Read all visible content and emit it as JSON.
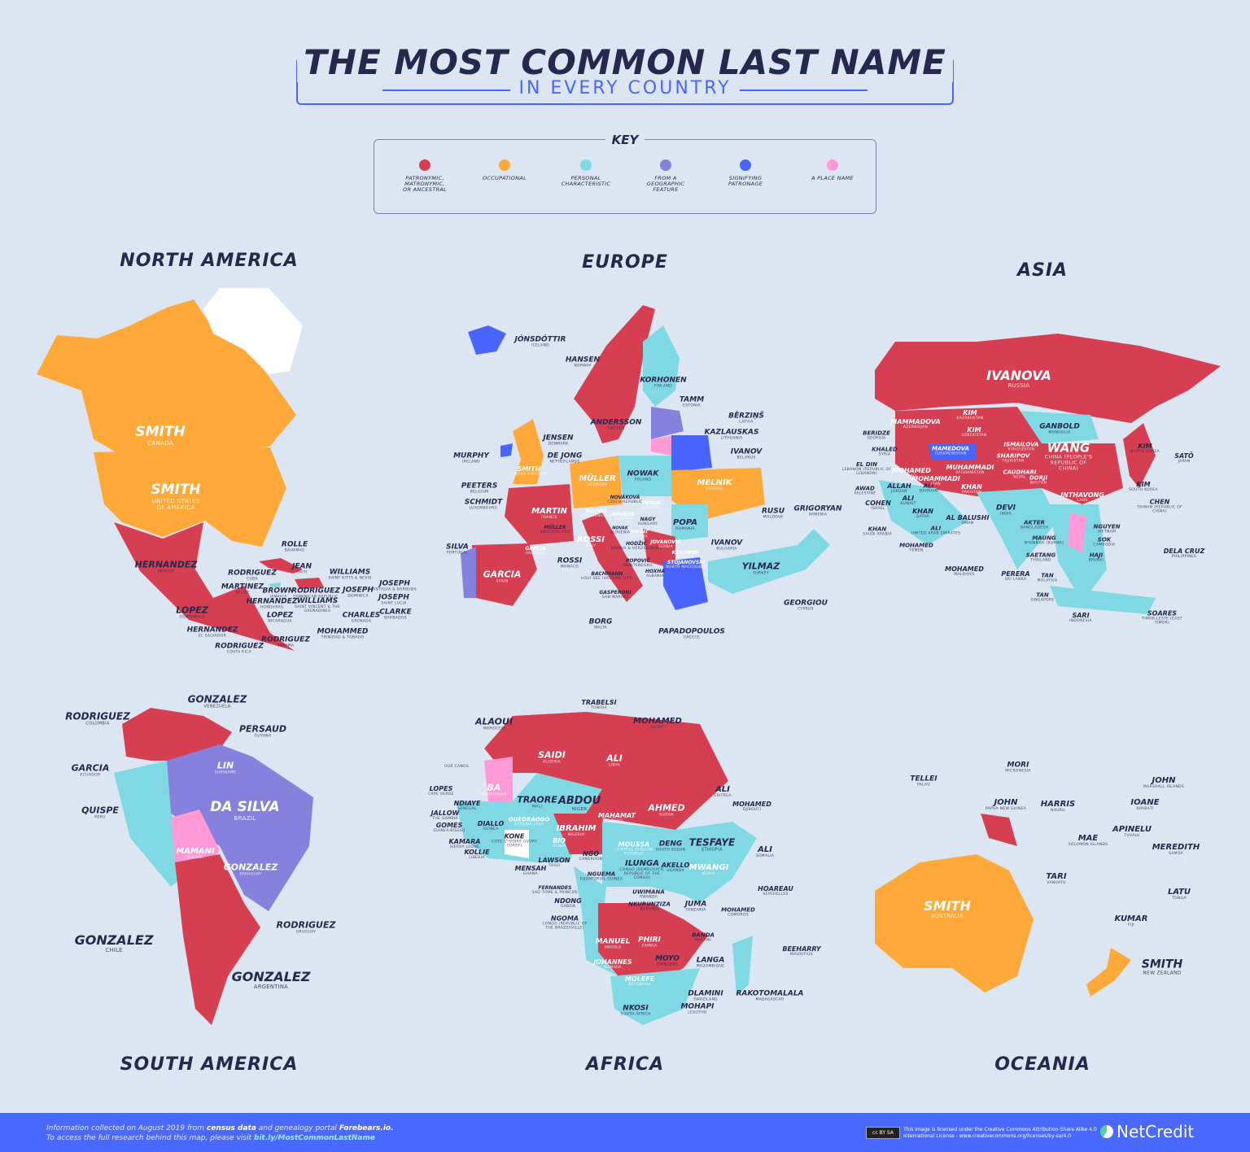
{
  "header": {
    "title": "THE MOST COMMON LAST NAME",
    "subtitle": "IN EVERY COUNTRY"
  },
  "key": {
    "title": "KEY",
    "items": [
      {
        "label": "PATRONYMIC,\nMATRONYMIC,\nOR ANCESTRAL",
        "color": "#d63f52"
      },
      {
        "label": "OCCUPATIONAL",
        "color": "#ffa93a"
      },
      {
        "label": "PERSONAL\nCHARACTERISTIC",
        "color": "#80d8e2"
      },
      {
        "label": "FROM A\nGEOGRAPHIC\nFEATURE",
        "color": "#8581dc"
      },
      {
        "label": "SIGNIFYING\nPATRONAGE",
        "color": "#4a64ff"
      },
      {
        "label": "A PLACE NAME",
        "color": "#ff9ad6"
      }
    ]
  },
  "continents": [
    "NORTH AMERICA",
    "EUROPE",
    "ASIA",
    "SOUTH AMERICA",
    "AFRICA",
    "OCEANIA"
  ],
  "labels": {
    "north_america": [
      [
        "SMITH",
        "CANADA"
      ],
      [
        "SMITH",
        "UNITED STATES OF AMERICA"
      ],
      [
        "HERNANDEZ",
        "MEXICO"
      ],
      [
        "ROLLE",
        "BAHAMAS"
      ],
      [
        "JEAN",
        "HAITI"
      ],
      [
        "RODRIGUEZ",
        "CUBA"
      ],
      [
        "WILLIAMS",
        "SAINT KITTS & NEVIS"
      ],
      [
        "JOSEPH",
        "ANTIGUA & BARBUDA"
      ],
      [
        "MARTINEZ",
        "BELIZE"
      ],
      [
        "BROWN",
        "JAMAICA"
      ],
      [
        "RODRIGUEZ",
        "DOMINICAN REPUBLIC"
      ],
      [
        "JOSEPH",
        "DOMINICA"
      ],
      [
        "HERNANDEZ",
        "HONDURAS"
      ],
      [
        "JOSEPH",
        "SAINT LUCIA"
      ],
      [
        "WILLIAMS",
        "SAINT VINCENT & THE GRENADINES"
      ],
      [
        "CLARKE",
        "BARBADOS"
      ],
      [
        "LOPEZ",
        "GUATEMALA"
      ],
      [
        "LOPEZ",
        "NICARAGUA"
      ],
      [
        "CHARLES",
        "GRENADA"
      ],
      [
        "HERNANDEZ",
        "EL SALVADOR"
      ],
      [
        "MOHAMMED",
        "TRINIDAD & TOBAGO"
      ],
      [
        "RODRIGUEZ",
        "PANAMA"
      ],
      [
        "RODRIGUEZ",
        "COSTA RICA"
      ]
    ],
    "europe": [
      [
        "JÓNSDÓTTIR",
        "ICELAND"
      ],
      [
        "HANSEN",
        "NORWAY"
      ],
      [
        "KORHONEN",
        "FINLAND"
      ],
      [
        "TAMM",
        "ESTONIA"
      ],
      [
        "ANDERSSON",
        "SWEDEN"
      ],
      [
        "BĒRZIŅŠ",
        "LATVIA"
      ],
      [
        "KAZLAUSKAS",
        "LITHUANIA"
      ],
      [
        "JENSEN",
        "DENMARK"
      ],
      [
        "MURPHY",
        "IRELAND"
      ],
      [
        "DE JONG",
        "NETHERLANDS"
      ],
      [
        "IVANOV",
        "BELARUS"
      ],
      [
        "SMITH",
        "UNITED KINGDOM"
      ],
      [
        "NOWAK",
        "POLAND"
      ],
      [
        "MÜLLER",
        "GERMANY"
      ],
      [
        "MELNIK",
        "UKRAINE"
      ],
      [
        "PEETERS",
        "BELGIUM"
      ],
      [
        "NOVÁKOVÁ",
        "CZECH REPUBLIC"
      ],
      [
        "VARGA",
        "SLOVAKIA"
      ],
      [
        "SCHMIDT",
        "LUXEMBOURG"
      ],
      [
        "BÜCHEL",
        "LIECHTENSTEIN"
      ],
      [
        "MARTIN",
        "FRANCE"
      ],
      [
        "GRUBER",
        "AUSTRIA"
      ],
      [
        "RUSU",
        "MOLDOVA"
      ],
      [
        "GRIGORYAN",
        "ARMENIA"
      ],
      [
        "NAGY",
        "HUNGARY"
      ],
      [
        "POPA",
        "ROMANIA"
      ],
      [
        "MÜLLER",
        "SWITZERLAND"
      ],
      [
        "NOVAK",
        "SLOVENIA"
      ],
      [
        "HORVAT",
        "CROATIA"
      ],
      [
        "ROSSI",
        "ITALY"
      ],
      [
        "HODŽIĆ",
        "BOSNIA & HERZEGOVINA"
      ],
      [
        "JOVANOVIĆ",
        "SERBIA"
      ],
      [
        "IVANOV",
        "BULGARIA"
      ],
      [
        "GARCIA",
        "ANDORRA"
      ],
      [
        "SILVA",
        "PORTUGAL"
      ],
      [
        "KRASNIQI",
        "KOSOVO"
      ],
      [
        "POPOVIĆ",
        "MONTENEGRO"
      ],
      [
        "STOJANOVSKI",
        "NORTH MACEDONIA"
      ],
      [
        "ROSSI",
        "MONACO"
      ],
      [
        "YILMAZ",
        "TURKEY"
      ],
      [
        "GARCIA",
        "SPAIN"
      ],
      [
        "HOXHA",
        "ALBANIA"
      ],
      [
        "BACHMANN",
        "HOLY SEE (VATICAN CITY)"
      ],
      [
        "GASPERONI",
        "SAN MARINO"
      ],
      [
        "GEORGIOU",
        "CYPRUS"
      ],
      [
        "BORG",
        "MALTA"
      ],
      [
        "PAPADOPOULOS",
        "GREECE"
      ]
    ],
    "asia": [
      [
        "IVANOVA",
        "RUSSIA"
      ],
      [
        "MAMMADOVA",
        "AZERBAIJAN"
      ],
      [
        "KIM",
        "KAZAKHSTAN"
      ],
      [
        "GANBOLD",
        "MONGOLIA"
      ],
      [
        "BERIDZE",
        "GEORGIA"
      ],
      [
        "KIM",
        "UZBEKISTAN"
      ],
      [
        "KHALED",
        "SYRIA"
      ],
      [
        "MAMEDOVA",
        "TURKMENISTAN"
      ],
      [
        "ISMAILOVA",
        "KYRGYZSTAN"
      ],
      [
        "WANG",
        "CHINA (PEOPLE'S REPUBLIC OF CHINA)"
      ],
      [
        "KIM",
        "NORTH KOREA"
      ],
      [
        "SATŌ",
        "JAPAN"
      ],
      [
        "SHARIPOV",
        "TAJIKISTAN"
      ],
      [
        "EL DIN",
        "LEBANON (REPUBLIC OF LEBANON)"
      ],
      [
        "MOHAMED",
        "IRAQ"
      ],
      [
        "MUHAMMADI",
        "AFGHANISTAN"
      ],
      [
        "MOHAMMADI",
        "IRAN"
      ],
      [
        "CAUDHARI",
        "NEPAL"
      ],
      [
        "DORJI",
        "BHUTAN"
      ],
      [
        "KHAN",
        "PAKISTAN"
      ],
      [
        "KIM",
        "SOUTH KOREA"
      ],
      [
        "ALLAH",
        "JORDAN"
      ],
      [
        "AWAD",
        "PALESTINE"
      ],
      [
        "ALI",
        "BAHRAIN"
      ],
      [
        "ALI",
        "KUWAIT"
      ],
      [
        "INTHAVONG",
        "LAOS"
      ],
      [
        "COHEN",
        "ISRAEL"
      ],
      [
        "CHEN",
        "TAIWAN (REPUBLIC OF CHINA)"
      ],
      [
        "KHAN",
        "QATAR"
      ],
      [
        "AL BALUSHI",
        "OMAN"
      ],
      [
        "DEVI",
        "INDIA"
      ],
      [
        "AKTER",
        "BANGLADESH"
      ],
      [
        "KHAN",
        "SAUDI ARABIA"
      ],
      [
        "ALI",
        "UNITED ARAB EMIRATES"
      ],
      [
        "NGUYEN",
        "VIETNAM"
      ],
      [
        "SOK",
        "CAMBODIA"
      ],
      [
        "MAUNG",
        "MYANMAR (BURMA)"
      ],
      [
        "MOHAMED",
        "YEMEN"
      ],
      [
        "SAETANG",
        "THAILAND"
      ],
      [
        "HAJI",
        "BRUNEI"
      ],
      [
        "DELA CRUZ",
        "PHILIPPINES"
      ],
      [
        "MOHAMED",
        "MALDIVES"
      ],
      [
        "PERERA",
        "SRI LANKA"
      ],
      [
        "TAN",
        "MALAYSIA"
      ],
      [
        "TAN",
        "SINGAPORE"
      ],
      [
        "SARI",
        "INDONESIA"
      ],
      [
        "SOARES",
        "TIMOR-LESTE (EAST TIMOR)"
      ]
    ],
    "south_america": [
      [
        "RODRIGUEZ",
        "COLOMBIA"
      ],
      [
        "GONZALEZ",
        "VENEZUELA"
      ],
      [
        "PERSAUD",
        "GUYANA"
      ],
      [
        "GARCIA",
        "ECUADOR"
      ],
      [
        "LIN",
        "SURINAME"
      ],
      [
        "DA SILVA",
        "BRAZIL"
      ],
      [
        "QUISPE",
        "PERU"
      ],
      [
        "MAMANI",
        "BOLIVIA"
      ],
      [
        "GONZALEZ",
        "PARAGUAY"
      ],
      [
        "RODRIGUEZ",
        "URUGUAY"
      ],
      [
        "GONZALEZ",
        "CHILE"
      ],
      [
        "GONZALEZ",
        "ARGENTINA"
      ]
    ],
    "africa": [
      [
        "TRABELSI",
        "TUNISIA"
      ],
      [
        "ALAOUI",
        "MOROCCO"
      ],
      [
        "MOHAMED",
        "EGYPT"
      ],
      [
        "SAIDI",
        "ALGERIA"
      ],
      [
        "ALI",
        "LIBYA"
      ],
      [
        "",
        "OUR CANOS"
      ],
      [
        "LOPES",
        "CAPE VERDE"
      ],
      [
        "BA",
        "MAURITANIA"
      ],
      [
        "ALI",
        "ERITREA"
      ],
      [
        "TRAORE",
        "MALI"
      ],
      [
        "ABDOU",
        "NIGER"
      ],
      [
        "MOHAMED",
        "DJIBOUTI"
      ],
      [
        "NDIAYE",
        "SENEGAL"
      ],
      [
        "AHMED",
        "SUDAN"
      ],
      [
        "JALLOW",
        "THE GAMBIA"
      ],
      [
        "MAHAMAT",
        "CHAD"
      ],
      [
        "OUEDRAOGO",
        "BURKINA FASO"
      ],
      [
        "GOMES",
        "GUINEA-BISSAU"
      ],
      [
        "DIALLO",
        "GUINEA"
      ],
      [
        "IBRAHIM",
        "NIGERIA"
      ],
      [
        "TESFAYE",
        "ETHIOPIA"
      ],
      [
        "KAMARA",
        "SIERRA LEONE"
      ],
      [
        "KONE",
        "COTE D'IVOIRE (IVORY COAST)"
      ],
      [
        "BIO",
        "BENIN"
      ],
      [
        "DENG",
        "SOUTH SUDAN"
      ],
      [
        "MOUSSA",
        "CENTRAL AFRICAN REPUBLIC"
      ],
      [
        "ALI",
        "SOMALIA"
      ],
      [
        "KOLLIE",
        "LIBERIA"
      ],
      [
        "NGO",
        "CAMEROON"
      ],
      [
        "LAWSON",
        "TOGO"
      ],
      [
        "MENSAH",
        "GHANA"
      ],
      [
        "AKELLO",
        "UGANDA"
      ],
      [
        "ILUNGA",
        "CONGO (DEMOCRATIC REPUBLIC OF THE CONGO)"
      ],
      [
        "MWANGI",
        "KENYA"
      ],
      [
        "NGUEMA",
        "EQUATORIAL GUINEA"
      ],
      [
        "FERNANDES",
        "SAO TOME & PRINCIPE"
      ],
      [
        "HOAREAU",
        "SEYCHELLES"
      ],
      [
        "UWIMANA",
        "RWANDA"
      ],
      [
        "NDONG",
        "GABON"
      ],
      [
        "NKURUNZIZA",
        "BURUNDI"
      ],
      [
        "JUMA",
        "TANZANIA"
      ],
      [
        "MOHAMED",
        "COMOROS"
      ],
      [
        "NGOMA",
        "CONGO (REPUBLIC OF THE BRAZZAVILLE)"
      ],
      [
        "BANDA",
        "MALAWI"
      ],
      [
        "MANUEL",
        "ANGOLA"
      ],
      [
        "PHIRI",
        "ZAMBIA"
      ],
      [
        "BEEHARRY",
        "MAURITIUS"
      ],
      [
        "MOYO",
        "ZIMBABWE"
      ],
      [
        "LANGA",
        "MOZAMBIQUE"
      ],
      [
        "JOHANNES",
        "NAMIBIA"
      ],
      [
        "MOLEFE",
        "BOTSWANA"
      ],
      [
        "DLAMINI",
        "SWAZILAND"
      ],
      [
        "RAKOTOMALALA",
        "MADAGASCAR"
      ],
      [
        "NKOSI",
        "SOUTH AFRICA"
      ],
      [
        "MOHAPI",
        "LESOTHO"
      ]
    ],
    "oceania": [
      [
        "MORI",
        "MICRONESIA"
      ],
      [
        "TELLEI",
        "PALAU"
      ],
      [
        "JOHN",
        "MARSHALL ISLANDS"
      ],
      [
        "JOHN",
        "PAPUA NEW GUINEA"
      ],
      [
        "HARRIS",
        "NAURU"
      ],
      [
        "IOANE",
        "KIRIBATI"
      ],
      [
        "APINELU",
        "TUVALU"
      ],
      [
        "MAE",
        "SOLOMON ISLANDS"
      ],
      [
        "MEREDITH",
        "SAMOA"
      ],
      [
        "TARI",
        "VANUATU"
      ],
      [
        "LATU",
        "TONGA"
      ],
      [
        "SMITH",
        "AUSTRALIA"
      ],
      [
        "KUMAR",
        "FIJI"
      ],
      [
        "SMITH",
        "NEW ZEALAND"
      ]
    ]
  },
  "footer": {
    "line1_a": "Information collected on August 2019 from ",
    "line1_b": "census data",
    "line1_c": " and genealogy portal ",
    "line1_d": "Forebears.io.",
    "line2_a": "To access the full research behind this map, please visit ",
    "line2_b": "bit.ly/MostCommonLastName",
    "cc_badge": "cc BY SA",
    "license": "This image is licensed under the Creative Commons Attribution-Share Alike 4.0 International License - www.creativecommons.org/licenses/by-sa/4.0",
    "brand": "NetCredit"
  }
}
